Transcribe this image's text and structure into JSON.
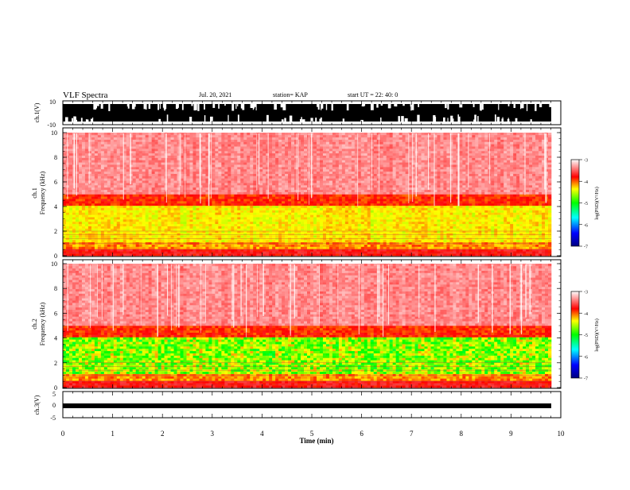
{
  "header": {
    "title": "VLF Spectra",
    "date": "Jul. 20, 2021",
    "station": "station= KAP",
    "start": "start  UT =   22: 40: 0"
  },
  "chart_data": [
    {
      "id": "ch1",
      "type": "line",
      "ylabel": "ch.1(V)",
      "ylim": [
        -10,
        10
      ],
      "y_ticks": [
        "10",
        "-10"
      ],
      "xlim": [
        0,
        10
      ]
    },
    {
      "id": "spec1",
      "type": "heatmap",
      "ylabel": "Frequency (kHz)",
      "channel_label": "ch.1",
      "ylim": [
        0,
        10
      ],
      "y_ticks": [
        "0",
        "2",
        "4",
        "6",
        "8",
        "10"
      ],
      "xlim": [
        0,
        10
      ],
      "colorbar": {
        "label": "log(PSD)(V²/Hz)",
        "ticks": [
          "-3",
          "-4",
          "-5",
          "-6",
          "-7"
        ],
        "range": [
          -7,
          -3
        ]
      }
    },
    {
      "id": "spec2",
      "type": "heatmap",
      "ylabel": "Frequency (kHz)",
      "channel_label": "ch.2",
      "ylim": [
        0,
        10
      ],
      "y_ticks": [
        "0",
        "2",
        "4",
        "6",
        "8",
        "10"
      ],
      "xlim": [
        0,
        10
      ],
      "colorbar": {
        "label": "log(PSD)(V²/Hz)",
        "ticks": [
          "-3",
          "-4",
          "-5",
          "-6",
          "-7"
        ],
        "range": [
          -7,
          -3
        ]
      }
    },
    {
      "id": "ch3",
      "type": "line",
      "ylabel": "ch.3(V)",
      "ylim": [
        -5,
        5
      ],
      "y_ticks": [
        "5",
        "0",
        "-5"
      ],
      "xlim": [
        0,
        10
      ]
    }
  ],
  "x_axis": {
    "label": "Time (min)",
    "ticks": [
      "0",
      "1",
      "2",
      "3",
      "4",
      "5",
      "6",
      "7",
      "8",
      "9",
      "10"
    ]
  },
  "colors": {
    "red": "#ff0000",
    "yellow": "#ffff00",
    "green": "#00ff00",
    "cyan": "#00ffff",
    "blue": "#0000ff",
    "navy": "#000080"
  }
}
